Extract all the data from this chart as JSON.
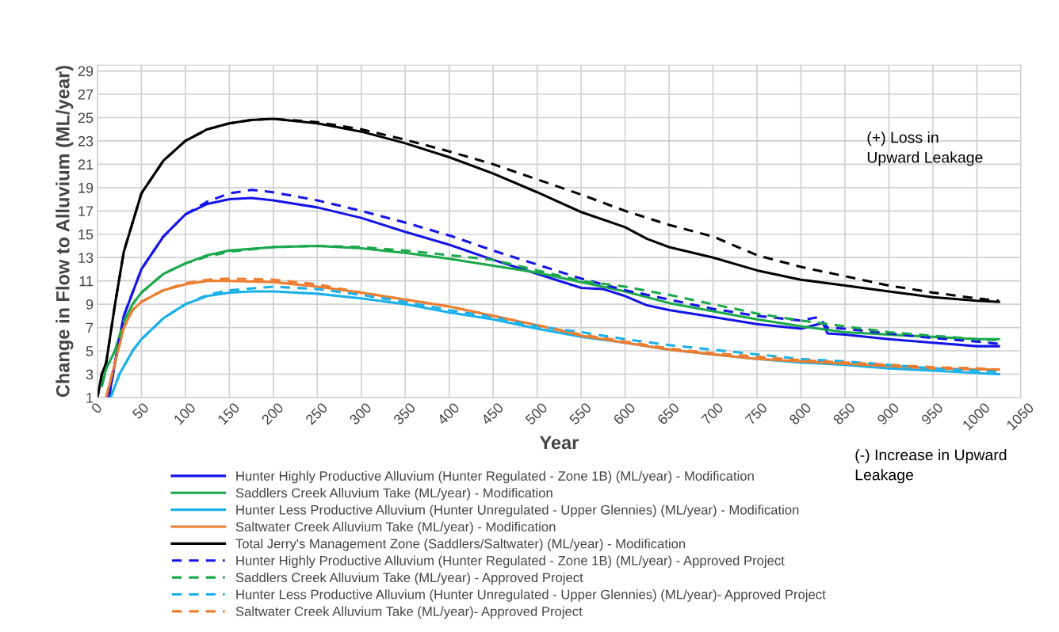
{
  "chart_data": {
    "type": "line",
    "xlabel": "Year",
    "ylabel": "Change in Flow to Alluvium (ML/year)",
    "xlim": [
      0,
      1050
    ],
    "xticks": [
      0,
      50,
      100,
      150,
      200,
      250,
      300,
      350,
      400,
      450,
      500,
      550,
      600,
      650,
      700,
      750,
      800,
      850,
      900,
      950,
      1000,
      1050
    ],
    "ylim": [
      1,
      29.5
    ],
    "yticks": [
      1,
      3,
      5,
      7,
      9,
      11,
      13,
      15,
      17,
      19,
      21,
      23,
      25,
      27,
      29
    ],
    "grid": true,
    "legend": "bottom",
    "marker": "none",
    "annotations": [
      "(+) Loss in\nUpward Leakage",
      "(-) Increase in Upward\nLeakage"
    ],
    "series": [
      {
        "name": "Hunter Highly Productive Alluvium (Hunter Regulated - Zone 1B) (ML/year) - Modification",
        "color": "#1414e6",
        "line_style": "solid",
        "x": [
          13,
          20,
          30,
          50,
          75,
          100,
          125,
          150,
          175,
          200,
          250,
          300,
          350,
          400,
          450,
          500,
          550,
          575,
          600,
          625,
          650,
          700,
          750,
          800,
          825,
          830,
          850,
          900,
          950,
          1000,
          1025
        ],
        "values": [
          1,
          4,
          8,
          12,
          14.8,
          16.7,
          17.6,
          18.0,
          18.1,
          17.9,
          17.3,
          16.4,
          15.2,
          14.1,
          12.8,
          11.6,
          10.4,
          10.3,
          9.7,
          8.9,
          8.5,
          7.9,
          7.3,
          6.9,
          7.4,
          6.5,
          6.4,
          6.0,
          5.7,
          5.4,
          5.4
        ]
      },
      {
        "name": "Saddlers Creek Alluvium Take (ML/year) - Modification",
        "color": "#1aa84a",
        "line_style": "solid",
        "x": [
          5,
          10,
          20,
          30,
          40,
          50,
          75,
          100,
          125,
          150,
          200,
          250,
          300,
          350,
          400,
          450,
          500,
          550,
          600,
          650,
          700,
          750,
          800,
          850,
          900,
          950,
          1000,
          1025
        ],
        "values": [
          2,
          3.5,
          5,
          7.5,
          9,
          10,
          11.6,
          12.5,
          13.2,
          13.6,
          13.9,
          14.0,
          13.8,
          13.4,
          12.9,
          12.3,
          11.7,
          10.9,
          10.1,
          9.1,
          8.4,
          7.7,
          7.1,
          6.6,
          6.4,
          6.2,
          6.0,
          6.0
        ]
      },
      {
        "name": "Hunter Less Productive Alluvium (Hunter Unregulated - Upper Glennies) (ML/year) - Modification",
        "color": "#1ab0e8",
        "line_style": "solid",
        "x": [
          15,
          25,
          40,
          50,
          75,
          100,
          125,
          150,
          175,
          200,
          250,
          300,
          350,
          400,
          450,
          500,
          550,
          600,
          650,
          700,
          750,
          800,
          850,
          900,
          950,
          1000,
          1025
        ],
        "values": [
          1,
          3,
          5,
          6,
          7.8,
          9.0,
          9.7,
          10.0,
          10.1,
          10.1,
          9.9,
          9.5,
          9.0,
          8.3,
          7.7,
          6.9,
          6.2,
          5.7,
          5.1,
          4.7,
          4.3,
          4.0,
          3.8,
          3.5,
          3.3,
          3.1,
          3.0
        ]
      },
      {
        "name": "Saltwater Creek Alluvium Take (ML/year) - Modification",
        "color": "#ed7d31",
        "line_style": "solid",
        "x": [
          10,
          20,
          30,
          40,
          50,
          75,
          100,
          125,
          150,
          200,
          250,
          300,
          350,
          400,
          450,
          500,
          550,
          600,
          650,
          700,
          750,
          800,
          850,
          900,
          950,
          1000,
          1025
        ],
        "values": [
          1,
          4,
          7,
          8.5,
          9.2,
          10.2,
          10.7,
          11.0,
          11.0,
          10.9,
          10.5,
          10.0,
          9.4,
          8.8,
          8.0,
          7.2,
          6.3,
          5.7,
          5.1,
          4.7,
          4.3,
          4.1,
          3.9,
          3.7,
          3.5,
          3.4,
          3.4
        ]
      },
      {
        "name": "Total Jerry's Management Zone (Saddlers/Saltwater) (ML/year) - Modification",
        "color": "#000000",
        "line_style": "solid",
        "x": [
          0,
          5,
          10,
          20,
          30,
          40,
          50,
          75,
          100,
          125,
          150,
          175,
          200,
          250,
          300,
          350,
          400,
          450,
          500,
          550,
          600,
          625,
          650,
          700,
          750,
          800,
          850,
          900,
          950,
          1000,
          1025
        ],
        "values": [
          1,
          3,
          4,
          9,
          13.5,
          16,
          18.5,
          21.3,
          23,
          24,
          24.5,
          24.8,
          24.9,
          24.5,
          23.8,
          22.8,
          21.6,
          20.2,
          18.6,
          16.9,
          15.6,
          14.6,
          13.9,
          13.0,
          11.9,
          11.1,
          10.6,
          10.1,
          9.6,
          9.3,
          9.2
        ]
      },
      {
        "name": "Hunter Highly Productive Alluvium (Hunter Regulated - Zone 1B) (ML/year) - Approved Project",
        "color": "#1414e6",
        "line_style": "dashed",
        "x": [
          13,
          20,
          30,
          50,
          75,
          100,
          125,
          150,
          175,
          200,
          250,
          300,
          350,
          400,
          450,
          500,
          550,
          600,
          650,
          700,
          750,
          800,
          820,
          830,
          850,
          900,
          950,
          1000,
          1025
        ],
        "values": [
          1,
          4,
          8,
          12,
          14.8,
          16.7,
          17.8,
          18.5,
          18.8,
          18.6,
          17.9,
          17.0,
          16.0,
          14.9,
          13.6,
          12.4,
          11.2,
          10.2,
          9.4,
          8.6,
          8.0,
          7.6,
          7.9,
          7.0,
          6.9,
          6.5,
          6.1,
          5.8,
          5.6
        ]
      },
      {
        "name": "Saddlers Creek Alluvium Take (ML/year) - Approved Project",
        "color": "#1aa84a",
        "line_style": "dashed",
        "x": [
          5,
          10,
          20,
          30,
          40,
          50,
          75,
          100,
          125,
          150,
          200,
          250,
          300,
          350,
          400,
          450,
          500,
          550,
          600,
          650,
          700,
          750,
          800,
          850,
          900,
          950,
          1000,
          1025
        ],
        "values": [
          2,
          3.5,
          5,
          7.5,
          9,
          10,
          11.6,
          12.5,
          13.1,
          13.5,
          13.9,
          14.0,
          13.9,
          13.6,
          13.2,
          12.8,
          11.9,
          11.0,
          10.5,
          9.8,
          9.0,
          8.2,
          7.6,
          7.1,
          6.6,
          6.3,
          6.0,
          5.9
        ]
      },
      {
        "name": "Hunter Less Productive Alluvium (Hunter Unregulated - Upper Glennies) (ML/year)- Approved Project",
        "color": "#1ab0e8",
        "line_style": "dashed",
        "x": [
          15,
          25,
          40,
          50,
          75,
          100,
          125,
          150,
          200,
          250,
          300,
          350,
          400,
          450,
          500,
          550,
          600,
          650,
          700,
          750,
          800,
          850,
          900,
          950,
          1000,
          1025
        ],
        "values": [
          1,
          3,
          5,
          6,
          7.8,
          9.0,
          9.8,
          10.2,
          10.5,
          10.3,
          9.8,
          9.2,
          8.5,
          7.9,
          7.1,
          6.6,
          6.0,
          5.5,
          5.1,
          4.7,
          4.3,
          4.1,
          3.8,
          3.5,
          3.3,
          3.2
        ]
      },
      {
        "name": "Saltwater Creek Alluvium Take (ML/year)- Approved Project",
        "color": "#ed7d31",
        "line_style": "dashed",
        "x": [
          10,
          20,
          30,
          40,
          50,
          75,
          100,
          125,
          150,
          200,
          250,
          300,
          350,
          400,
          450,
          500,
          550,
          600,
          650,
          700,
          750,
          800,
          850,
          900,
          950,
          1000,
          1025
        ],
        "values": [
          1,
          4,
          7,
          8.5,
          9.2,
          10.2,
          10.8,
          11.1,
          11.2,
          11.1,
          10.7,
          10.0,
          9.4,
          8.8,
          8.0,
          7.2,
          6.4,
          5.8,
          5.2,
          4.8,
          4.5,
          4.2,
          4.0,
          3.8,
          3.6,
          3.5,
          3.4
        ]
      },
      {
        "color": "#000000",
        "line_style": "dashed",
        "x": [
          0,
          5,
          10,
          20,
          30,
          40,
          50,
          75,
          100,
          125,
          150,
          175,
          200,
          250,
          300,
          350,
          400,
          450,
          500,
          550,
          600,
          650,
          700,
          750,
          800,
          850,
          900,
          950,
          1000,
          1025
        ],
        "values": [
          1,
          3,
          4,
          9,
          13.5,
          16,
          18.5,
          21.3,
          23,
          24,
          24.5,
          24.8,
          24.9,
          24.6,
          24.0,
          23.1,
          22.1,
          21.0,
          19.7,
          18.4,
          17.0,
          15.8,
          14.8,
          13.2,
          12.2,
          11.4,
          10.6,
          10.0,
          9.5,
          9.3
        ]
      }
    ]
  }
}
